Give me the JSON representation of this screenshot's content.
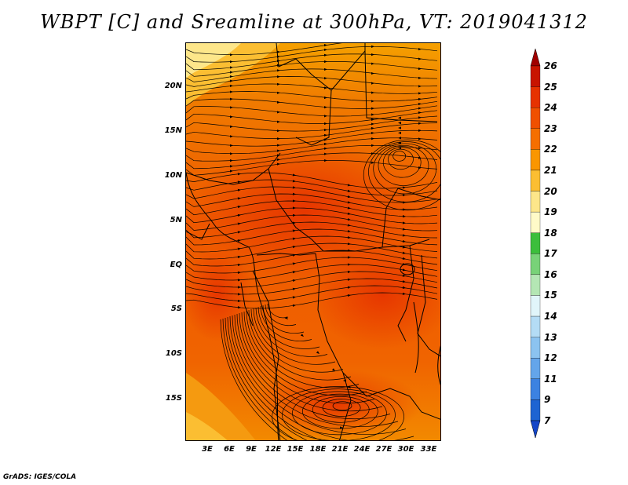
{
  "title": "WBPT [C] and Sreamline at 300hPa, VT: 2019041312",
  "credit": "GrADS: IGES/COLA",
  "lat_labels": [
    "20N",
    "15N",
    "10N",
    "5N",
    "EQ",
    "5S",
    "10S",
    "15S"
  ],
  "lon_labels": [
    "3E",
    "6E",
    "9E",
    "12E",
    "15E",
    "18E",
    "21E",
    "24E",
    "27E",
    "30E",
    "33E"
  ],
  "colorbar": {
    "levels": [
      "26",
      "25",
      "24",
      "23",
      "22",
      "21",
      "20",
      "19",
      "18",
      "17",
      "16",
      "15",
      "14",
      "13",
      "12",
      "11",
      "9",
      "7"
    ],
    "colors": [
      "#a00000",
      "#c81400",
      "#e63200",
      "#f05000",
      "#f56f00",
      "#fa9600",
      "#fbbe32",
      "#fde68a",
      "#fffac8",
      "#3cbe3c",
      "#78d278",
      "#b4e6b4",
      "#e1f5fa",
      "#b4dcf5",
      "#8cc3f0",
      "#64a5ea",
      "#3c82e1",
      "#1e64d2",
      "#1446c8"
    ]
  },
  "map": {
    "dominant_field_color": "#f05000",
    "warm_core_color": "#e63200",
    "cool_region_color": "#fbbe32",
    "streamline_color": "#000000",
    "border_color": "#000000"
  }
}
